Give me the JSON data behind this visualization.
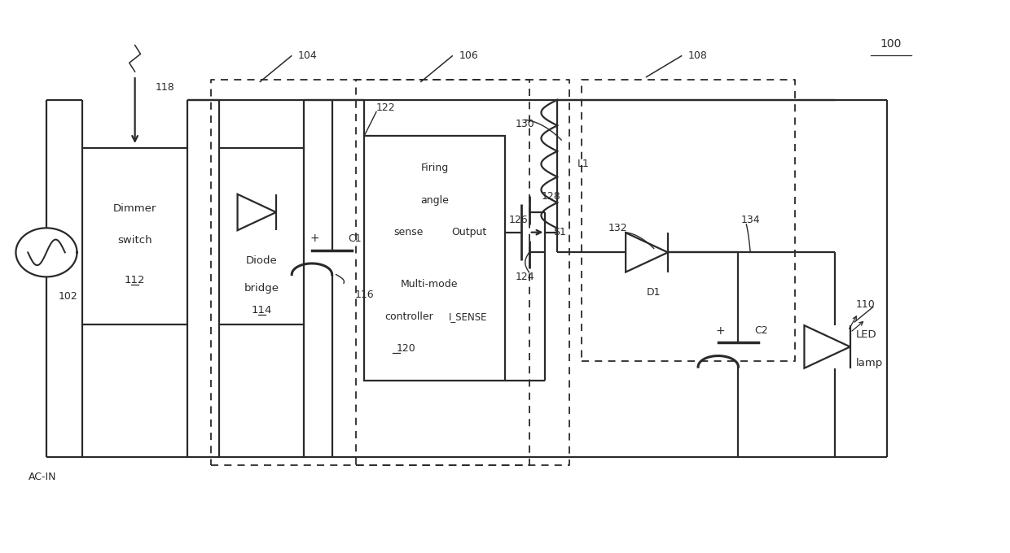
{
  "bg": "#ffffff",
  "lc": "#2a2a2a",
  "lw": 1.6,
  "fig_w": 12.4,
  "fig_h": 6.8,
  "label_100": "100",
  "label_102": "102",
  "label_104": "104",
  "label_106": "106",
  "label_108": "108",
  "label_110": "110",
  "label_112": "112",
  "label_114": "114",
  "label_116": "116",
  "label_118": "118",
  "label_120": "120",
  "label_122": "122",
  "label_124": "124",
  "label_126": "126",
  "label_128": "128",
  "label_130": "130",
  "label_132": "132",
  "label_134": "134",
  "text_dimmer": "Dimmer",
  "text_switch": "switch",
  "text_diode": "Diode",
  "text_bridge": "bridge",
  "text_firing": "Firing",
  "text_angle": "angle",
  "text_sense": "sense",
  "text_output": "Output",
  "text_multimode": "Multi-mode",
  "text_controller": "controller",
  "text_C1": "C1",
  "text_C2": "C2",
  "text_L1": "L1",
  "text_D1": "D1",
  "text_S1": "S1",
  "text_LED": "LED",
  "text_lamp": "lamp",
  "text_ACIN": "AC-IN",
  "text_ISENSE": "I_SENSE",
  "text_plus": "+"
}
